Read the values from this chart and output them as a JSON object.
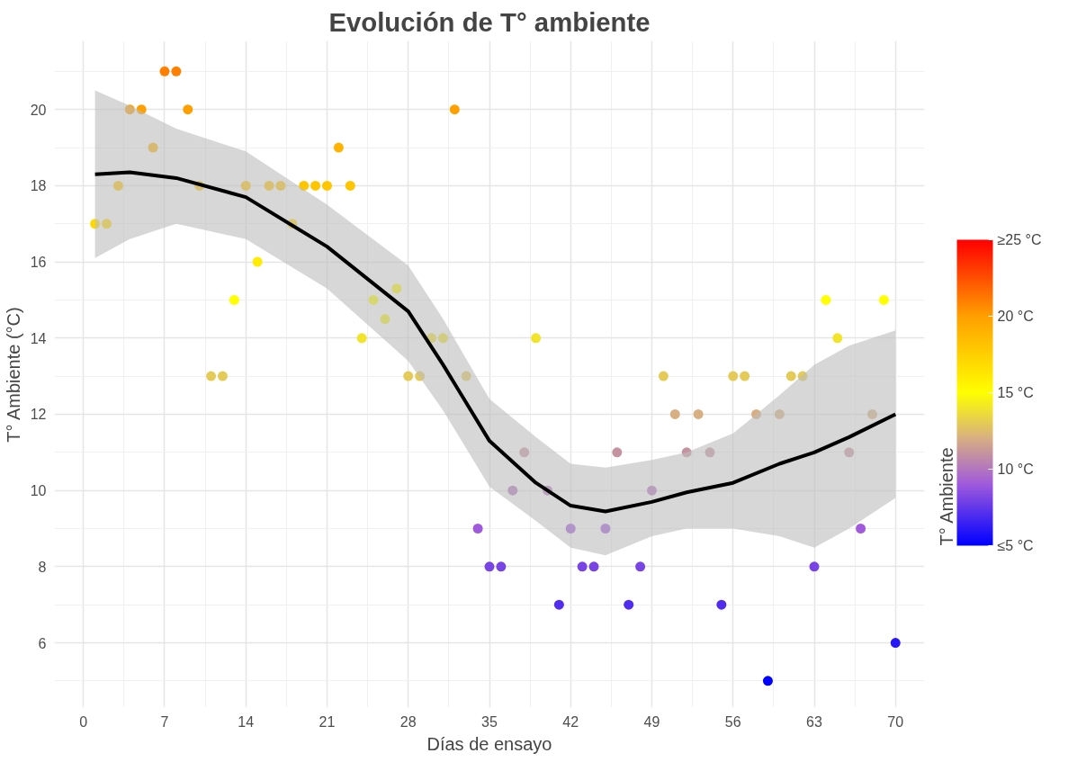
{
  "chart_data": {
    "type": "scatter",
    "title": "Evolución de T° ambiente",
    "xlabel": "Días de ensayo",
    "ylabel": "T° Ambiente (°C)",
    "clabel": "T° Ambiente",
    "xlim": [
      -2.5,
      72.5
    ],
    "ylim": [
      4.3,
      21.8
    ],
    "xticks": [
      0,
      7,
      14,
      21,
      28,
      35,
      42,
      49,
      56,
      63,
      70
    ],
    "yticks": [
      6,
      8,
      10,
      12,
      14,
      16,
      18,
      20
    ],
    "clim": [
      5,
      25
    ],
    "cticks": [
      {
        "value": 5,
        "label": "≤5 °C"
      },
      {
        "value": 10,
        "label": "10 °C"
      },
      {
        "value": 15,
        "label": "15 °C"
      },
      {
        "value": 20,
        "label": "20 °C"
      },
      {
        "value": 25,
        "label": "≥25 °C"
      }
    ],
    "grid": true,
    "series": [
      {
        "marker": "circle",
        "x": [
          1,
          2,
          3,
          4,
          5,
          6,
          7,
          8,
          9,
          10,
          11,
          12,
          13,
          14,
          15,
          16,
          17,
          18,
          19,
          20,
          21,
          22,
          23,
          24,
          25,
          26,
          27,
          28,
          29,
          30,
          31,
          32,
          33,
          34,
          35,
          36,
          37,
          38,
          39,
          40,
          41,
          42,
          43,
          44,
          45,
          46,
          47,
          48,
          49,
          50,
          51,
          52,
          53,
          54,
          55,
          56,
          57,
          58,
          59,
          60,
          61,
          62,
          63,
          64,
          65,
          66,
          67,
          68,
          69,
          70
        ],
        "values": [
          17,
          17,
          18,
          20,
          20,
          19,
          21,
          21,
          20,
          18,
          13,
          13,
          15,
          18,
          16,
          18,
          18,
          17,
          18,
          18,
          18,
          19,
          18,
          14,
          15,
          14.5,
          15.3,
          13,
          13,
          14,
          14,
          20,
          13,
          9,
          8,
          8,
          10,
          11,
          14,
          10,
          7,
          9,
          8,
          8,
          9,
          11,
          7,
          8,
          10,
          13,
          12,
          11,
          12,
          11,
          7,
          13,
          13,
          12,
          5,
          12,
          13,
          13,
          8,
          15,
          14,
          11,
          9,
          12,
          15,
          6
        ],
        "colors": [
          "#ffd900",
          "#ffd900",
          "#ffc600",
          "#ffa000",
          "#ffa000",
          "#ffb300",
          "#ff8000",
          "#ff8000",
          "#ffa000",
          "#ffc600",
          "#e4ca57",
          "#e4ca57",
          "#ffff00",
          "#ffc600",
          "#ffec00",
          "#ffc600",
          "#ffc600",
          "#ffd900",
          "#ffc600",
          "#ffc600",
          "#ffc600",
          "#ffb300",
          "#ffc600",
          "#f2e42b",
          "#ffff00",
          "#f8f216",
          "#fff900",
          "#e4ca57",
          "#e4ca57",
          "#f2e42b",
          "#f2e42b",
          "#ffa000",
          "#e4ca57",
          "#a05adc",
          "#7844e5",
          "#7844e5",
          "#b276be",
          "#c593a0",
          "#f2e42b",
          "#b276be",
          "#502dee",
          "#a05adc",
          "#7844e5",
          "#7844e5",
          "#a05adc",
          "#c593a0",
          "#502dee",
          "#7844e5",
          "#b276be",
          "#e4ca57",
          "#d7af82",
          "#c593a0",
          "#d7af82",
          "#c593a0",
          "#502dee",
          "#e4ca57",
          "#e4ca57",
          "#d7af82",
          "#0000ff",
          "#d7af82",
          "#e4ca57",
          "#e4ca57",
          "#7844e5",
          "#ffff00",
          "#f2e42b",
          "#c593a0",
          "#a05adc",
          "#d7af82",
          "#ffff00",
          "#2817f6"
        ]
      },
      {
        "type": "line",
        "marker": "none",
        "color": "#000000",
        "x": [
          1,
          4,
          8,
          14,
          21,
          28,
          31,
          35,
          39,
          42,
          45,
          49,
          52,
          56,
          60,
          63,
          66,
          70
        ],
        "values": [
          18.3,
          18.35,
          18.2,
          17.7,
          16.4,
          14.7,
          13.3,
          11.3,
          10.2,
          9.6,
          9.45,
          9.7,
          9.95,
          10.2,
          10.7,
          11.0,
          11.4,
          12.0
        ],
        "lower": [
          16.1,
          16.6,
          17.0,
          16.6,
          15.3,
          13.4,
          12.1,
          10.1,
          9.2,
          8.5,
          8.3,
          8.8,
          9.0,
          9.0,
          8.8,
          8.5,
          9.0,
          9.8
        ],
        "upper": [
          20.5,
          20.1,
          19.5,
          18.9,
          17.5,
          15.9,
          14.5,
          12.4,
          11.4,
          10.7,
          10.6,
          10.8,
          11.0,
          11.5,
          12.5,
          13.3,
          13.8,
          14.2
        ]
      }
    ]
  }
}
